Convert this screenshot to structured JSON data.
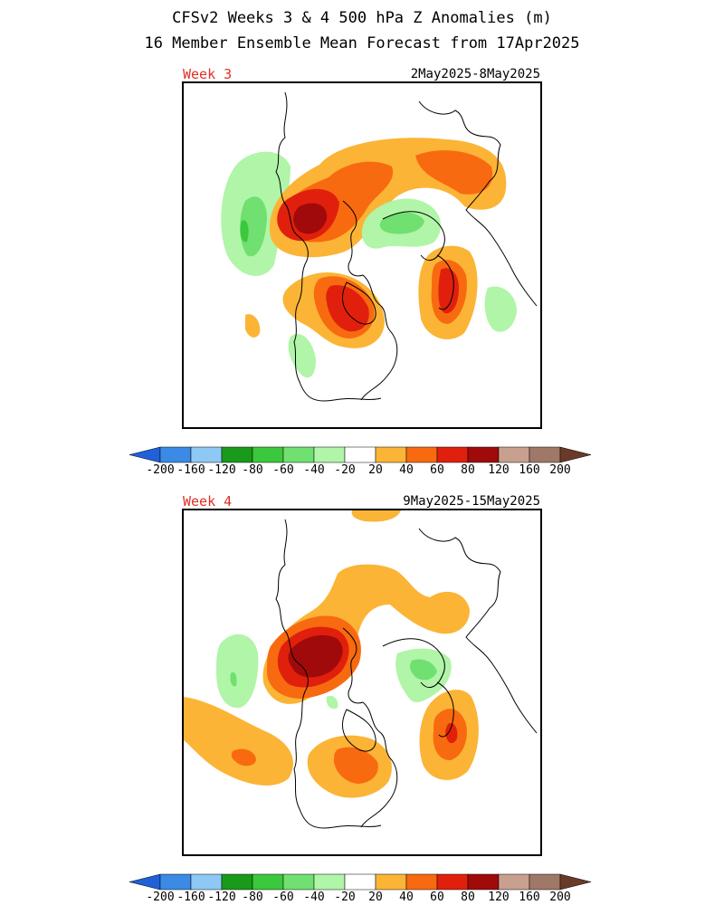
{
  "header": {
    "title": "CFSv2 Weeks 3 & 4 500 hPa Z Anomalies (m)",
    "subtitle": "16 Member Ensemble Mean Forecast from 17Apr2025"
  },
  "panels": [
    {
      "label": "Week 3",
      "dates": "2May2025-8May2025"
    },
    {
      "label": "Week 4",
      "dates": "9May2025-15May2025"
    }
  ],
  "colorbar": {
    "labels": [
      "-200",
      "-160",
      "-120",
      "-80",
      "-60",
      "-40",
      "-20",
      "20",
      "40",
      "60",
      "80",
      "120",
      "160",
      "200"
    ],
    "colors": {
      "neg_end": "#2060d8",
      "neg": [
        "#3a8ae6",
        "#8ec8f5",
        "#1a9a1a",
        "#3cc83c",
        "#70e070",
        "#b0f5a8"
      ],
      "neutral": "#ffffff",
      "pos": [
        "#fbb436",
        "#f86a10",
        "#e0200c",
        "#a00a0a",
        "#c8a090",
        "#a07868"
      ],
      "pos_end": "#6a3a28"
    }
  },
  "colors": {
    "green_light": "#b0f5a8",
    "green_mid": "#70e070",
    "green_dark": "#3cc83c",
    "orange_light": "#fbb436",
    "orange_mid": "#f86a10",
    "red": "#e0200c",
    "dark_red": "#a00a0a"
  }
}
